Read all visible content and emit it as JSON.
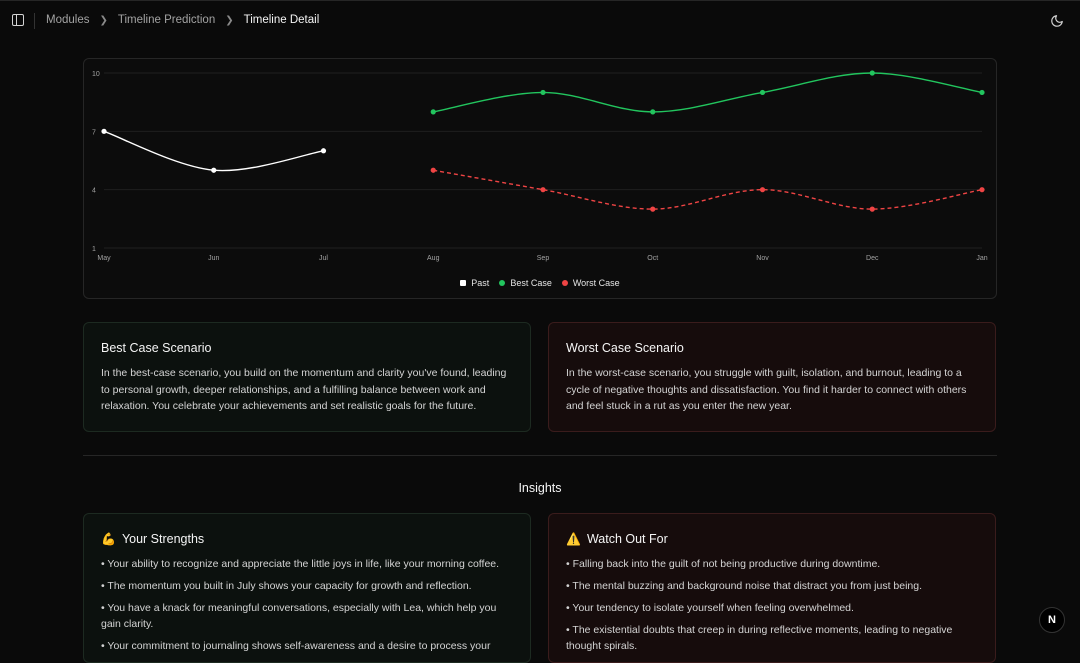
{
  "breadcrumb": {
    "items": [
      "Modules",
      "Timeline Prediction"
    ],
    "current": "Timeline Detail"
  },
  "chart_data": {
    "type": "line",
    "categories": [
      "May",
      "Jun",
      "Jul",
      "Aug",
      "Sep",
      "Oct",
      "Nov",
      "Dec",
      "Jan"
    ],
    "yticks": [
      1,
      4,
      7,
      10
    ],
    "ylim": [
      1,
      10
    ],
    "series": [
      {
        "name": "Past",
        "color": "#ffffff",
        "dashed": false,
        "values": [
          7,
          5,
          6,
          null,
          null,
          null,
          null,
          null,
          null
        ]
      },
      {
        "name": "Best Case",
        "color": "#22c55e",
        "dashed": false,
        "values": [
          null,
          null,
          null,
          8,
          9,
          8,
          9,
          10,
          9
        ]
      },
      {
        "name": "Worst Case",
        "color": "#ef4444",
        "dashed": true,
        "values": [
          null,
          null,
          null,
          5,
          4,
          3,
          4,
          3,
          4
        ]
      }
    ],
    "legend_position": "bottom"
  },
  "scenarios": {
    "best": {
      "title": "Best Case Scenario",
      "text": "In the best-case scenario, you build on the momentum and clarity you've found, leading to personal growth, deeper relationships, and a fulfilling balance between work and relaxation. You celebrate your achievements and set realistic goals for the future."
    },
    "worst": {
      "title": "Worst Case Scenario",
      "text": "In the worst-case scenario, you struggle with guilt, isolation, and burnout, leading to a cycle of negative thoughts and dissatisfaction. You find it harder to connect with others and feel stuck in a rut as you enter the new year."
    }
  },
  "insights": {
    "title": "Insights",
    "strengths": {
      "emoji": "💪",
      "title": "Your Strengths",
      "items": [
        "• Your ability to recognize and appreciate the little joys in life, like your morning coffee.",
        "• The momentum you built in July shows your capacity for growth and reflection.",
        "• You have a knack for meaningful conversations, especially with Lea, which help you gain clarity.",
        "• Your commitment to journaling shows self-awareness and a desire to process your"
      ]
    },
    "watch": {
      "emoji": "⚠️",
      "title": "Watch Out For",
      "items": [
        "• Falling back into the guilt of not being productive during downtime.",
        "• The mental buzzing and background noise that distract you from just being.",
        "• Your tendency to isolate yourself when feeling overwhelmed.",
        "• The existential doubts that creep in during reflective moments, leading to negative thought spirals."
      ]
    }
  },
  "badge": {
    "label": "N"
  }
}
